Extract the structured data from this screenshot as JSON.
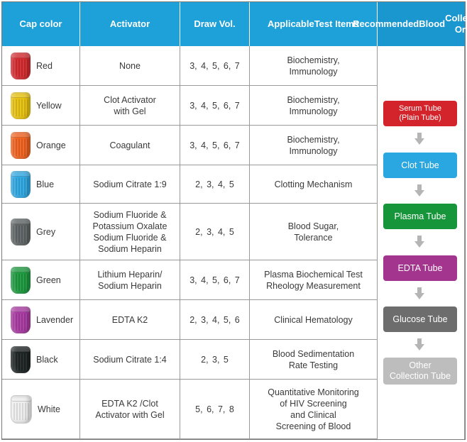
{
  "header": {
    "cap_color": "Cap color",
    "activator": "Activator",
    "draw_vol": "Draw Vol.",
    "applicable_line1": "Applicable",
    "applicable_line2": "Test Items",
    "recommended_line1": "Recommended",
    "recommended_line2": "Blood",
    "recommended_line3": "Collection Order"
  },
  "rows": [
    {
      "cap": "Red",
      "color": "#d42a2f",
      "activator": [
        "None"
      ],
      "draw": "3, 4, 5, 6, 7",
      "tests": [
        "Biochemistry,",
        "Immunology"
      ]
    },
    {
      "cap": "Yellow",
      "color": "#e8c20f",
      "activator": [
        "Clot Activator",
        "with Gel"
      ],
      "draw": "3, 4, 5, 6, 7",
      "tests": [
        "Biochemistry,",
        "Immunology"
      ]
    },
    {
      "cap": "Orange",
      "color": "#f0621f",
      "activator": [
        "Coagulant"
      ],
      "draw": "3, 4, 5, 6, 7",
      "tests": [
        "Biochemistry,",
        "Immunology"
      ]
    },
    {
      "cap": "Blue",
      "color": "#2fa8e2",
      "activator": [
        "Sodium Citrate 1:9"
      ],
      "draw": "2, 3, 4, 5",
      "tests": [
        "Clotting Mechanism"
      ]
    },
    {
      "cap": "Grey",
      "color": "#5f6566",
      "activator": [
        "Sodium Fluoride &",
        "Potassium Oxalate",
        "Sodium Fluoride &",
        "Sodium Heparin"
      ],
      "draw": "2, 3, 4, 5",
      "tests": [
        "Blood Sugar,",
        "Tolerance"
      ]
    },
    {
      "cap": "Green",
      "color": "#1d9a3f",
      "activator": [
        "Lithium Heparin/",
        "Sodium Heparin"
      ],
      "draw": "3, 4, 5, 6, 7",
      "tests": [
        "Plasma Biochemical Test",
        "Rheology Measurement"
      ]
    },
    {
      "cap": "Lavender",
      "color": "#a93aa2",
      "activator": [
        "EDTA K2"
      ],
      "draw": "2, 3, 4, 5, 6",
      "tests": [
        "Clinical Hematology"
      ]
    },
    {
      "cap": "Black",
      "color": "#1e2424",
      "activator": [
        "Sodium Citrate 1:4"
      ],
      "draw": "2, 3, 5",
      "tests": [
        "Blood Sedimentation",
        "Rate Testing"
      ]
    },
    {
      "cap": "White",
      "color": "#eeeeee",
      "activator": [
        "EDTA K2 /Clot",
        "Activator with Gel"
      ],
      "draw": "5, 6, 7, 8",
      "tests": [
        "Quantitative Monitoring",
        "of HIV Screening",
        "and Clinical",
        "Screening of Blood"
      ]
    }
  ],
  "order": [
    {
      "lines": [
        "Serum Tube",
        "(Plain Tube)"
      ],
      "color": "#d3242b"
    },
    {
      "lines": [
        "Clot Tube"
      ],
      "color": "#2aa7e0"
    },
    {
      "lines": [
        "Plasma Tube"
      ],
      "color": "#17953a"
    },
    {
      "lines": [
        "EDTA Tube"
      ],
      "color": "#a3358f"
    },
    {
      "lines": [
        "Glucose Tube"
      ],
      "color": "#6d6d6d"
    },
    {
      "lines": [
        "Other",
        "Collection Tube"
      ],
      "color": "#bdbdbd"
    }
  ]
}
